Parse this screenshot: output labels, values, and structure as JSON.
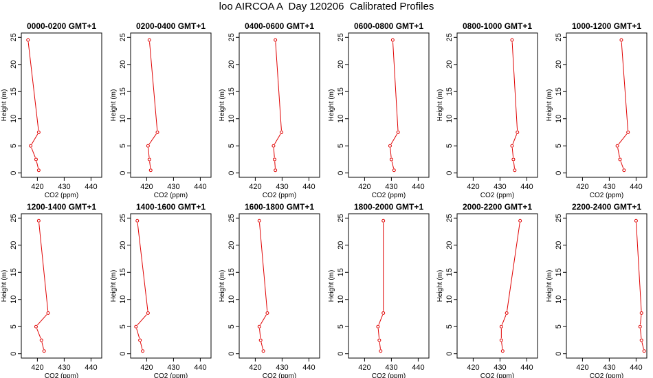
{
  "title": "loo AIRCOA A  Day 120206  Calibrated Profiles",
  "colors": {
    "line": "#e00000",
    "frame": "#000000"
  },
  "chart_data": [
    {
      "type": "line",
      "title": "0000-0200 GMT+1",
      "xlabel": "CO2 (ppm)",
      "ylabel": "Height (m)",
      "xlim": [
        414,
        444
      ],
      "ylim": [
        -0.8,
        25.8
      ],
      "xticks": [
        420,
        430,
        440
      ],
      "yticks": [
        0,
        5,
        10,
        15,
        20,
        25
      ],
      "x": [
        420.5,
        419.5,
        417.5,
        420.5,
        416.5
      ],
      "y": [
        0.5,
        2.5,
        5,
        7.5,
        24.5
      ]
    },
    {
      "type": "line",
      "title": "0200-0400 GMT+1",
      "xlabel": "CO2 (ppm)",
      "ylabel": "Height (m)",
      "xlim": [
        414,
        444
      ],
      "ylim": [
        -0.8,
        25.8
      ],
      "xticks": [
        420,
        430,
        440
      ],
      "yticks": [
        0,
        5,
        10,
        15,
        20,
        25
      ],
      "x": [
        421.5,
        421,
        420.5,
        424,
        421
      ],
      "y": [
        0.5,
        2.5,
        5,
        7.5,
        24.5
      ]
    },
    {
      "type": "line",
      "title": "0400-0600 GMT+1",
      "xlabel": "CO2 (ppm)",
      "ylabel": "Height (m)",
      "xlim": [
        414,
        444
      ],
      "ylim": [
        -0.8,
        25.8
      ],
      "xticks": [
        420,
        430,
        440
      ],
      "yticks": [
        0,
        5,
        10,
        15,
        20,
        25
      ],
      "x": [
        427.5,
        427.2,
        426.8,
        429.8,
        427.5
      ],
      "y": [
        0.5,
        2.5,
        5,
        7.5,
        24.5
      ]
    },
    {
      "type": "line",
      "title": "0600-0800 GMT+1",
      "xlabel": "CO2 (ppm)",
      "ylabel": "Height (m)",
      "xlim": [
        414,
        444
      ],
      "ylim": [
        -0.8,
        25.8
      ],
      "xticks": [
        420,
        430,
        440
      ],
      "yticks": [
        0,
        5,
        10,
        15,
        20,
        25
      ],
      "x": [
        431,
        430,
        429.5,
        432.5,
        430.5
      ],
      "y": [
        0.5,
        2.5,
        5,
        7.5,
        24.5
      ]
    },
    {
      "type": "line",
      "title": "0800-1000 GMT+1",
      "xlabel": "CO2 (ppm)",
      "ylabel": "Height (m)",
      "xlim": [
        414,
        444
      ],
      "ylim": [
        -0.8,
        25.8
      ],
      "xticks": [
        420,
        430,
        440
      ],
      "yticks": [
        0,
        5,
        10,
        15,
        20,
        25
      ],
      "x": [
        435.5,
        435,
        434.5,
        436.5,
        434.5
      ],
      "y": [
        0.5,
        2.5,
        5,
        7.5,
        24.5
      ]
    },
    {
      "type": "line",
      "title": "1000-1200 GMT+1",
      "xlabel": "CO2 (ppm)",
      "ylabel": "Height (m)",
      "xlim": [
        414,
        444
      ],
      "ylim": [
        -0.8,
        25.8
      ],
      "xticks": [
        420,
        430,
        440
      ],
      "yticks": [
        0,
        5,
        10,
        15,
        20,
        25
      ],
      "x": [
        435.5,
        434,
        433,
        437,
        434.5
      ],
      "y": [
        0.5,
        2.5,
        5,
        7.5,
        24.5
      ]
    },
    {
      "type": "line",
      "title": "1200-1400 GMT+1",
      "xlabel": "CO2 (ppm)",
      "ylabel": "Height (m)",
      "xlim": [
        414,
        444
      ],
      "ylim": [
        -0.8,
        25.8
      ],
      "xticks": [
        420,
        430,
        440
      ],
      "yticks": [
        0,
        5,
        10,
        15,
        20,
        25
      ],
      "x": [
        422.5,
        421.5,
        419.5,
        424,
        420.5
      ],
      "y": [
        0.5,
        2.5,
        5,
        7.5,
        24.5
      ]
    },
    {
      "type": "line",
      "title": "1400-1600 GMT+1",
      "xlabel": "CO2 (ppm)",
      "ylabel": "Height (m)",
      "xlim": [
        414,
        444
      ],
      "ylim": [
        -0.8,
        25.8
      ],
      "xticks": [
        420,
        430,
        440
      ],
      "yticks": [
        0,
        5,
        10,
        15,
        20,
        25
      ],
      "x": [
        418.5,
        417.5,
        416,
        420.5,
        416.5
      ],
      "y": [
        0.5,
        2.5,
        5,
        7.5,
        24.5
      ]
    },
    {
      "type": "line",
      "title": "1600-1800 GMT+1",
      "xlabel": "CO2 (ppm)",
      "ylabel": "Height (m)",
      "xlim": [
        414,
        444
      ],
      "ylim": [
        -0.8,
        25.8
      ],
      "xticks": [
        420,
        430,
        440
      ],
      "yticks": [
        0,
        5,
        10,
        15,
        20,
        25
      ],
      "x": [
        423,
        422,
        421.5,
        424.5,
        421.5
      ],
      "y": [
        0.5,
        2.5,
        5,
        7.5,
        24.5
      ]
    },
    {
      "type": "line",
      "title": "1800-2000 GMT+1",
      "xlabel": "CO2 (ppm)",
      "ylabel": "Height (m)",
      "xlim": [
        414,
        444
      ],
      "ylim": [
        -0.8,
        25.8
      ],
      "xticks": [
        420,
        430,
        440
      ],
      "yticks": [
        0,
        5,
        10,
        15,
        20,
        25
      ],
      "x": [
        426,
        425.5,
        425,
        427,
        427
      ],
      "y": [
        0.5,
        2.5,
        5,
        7.5,
        24.5
      ]
    },
    {
      "type": "line",
      "title": "2000-2200 GMT+1",
      "xlabel": "CO2 (ppm)",
      "ylabel": "Height (m)",
      "xlim": [
        414,
        444
      ],
      "ylim": [
        -0.8,
        25.8
      ],
      "xticks": [
        420,
        430,
        440
      ],
      "yticks": [
        0,
        5,
        10,
        15,
        20,
        25
      ],
      "x": [
        431,
        430.5,
        430.5,
        432.5,
        437.5
      ],
      "y": [
        0.5,
        2.5,
        5,
        7.5,
        24.5
      ]
    },
    {
      "type": "line",
      "title": "2200-2400 GMT+1",
      "xlabel": "CO2 (ppm)",
      "ylabel": "Height (m)",
      "xlim": [
        414,
        444
      ],
      "ylim": [
        -0.8,
        25.8
      ],
      "xticks": [
        420,
        430,
        440
      ],
      "yticks": [
        0,
        5,
        10,
        15,
        20,
        25
      ],
      "x": [
        443,
        442,
        441.5,
        442,
        440
      ],
      "y": [
        0.5,
        2.5,
        5,
        7.5,
        24.5
      ]
    }
  ]
}
